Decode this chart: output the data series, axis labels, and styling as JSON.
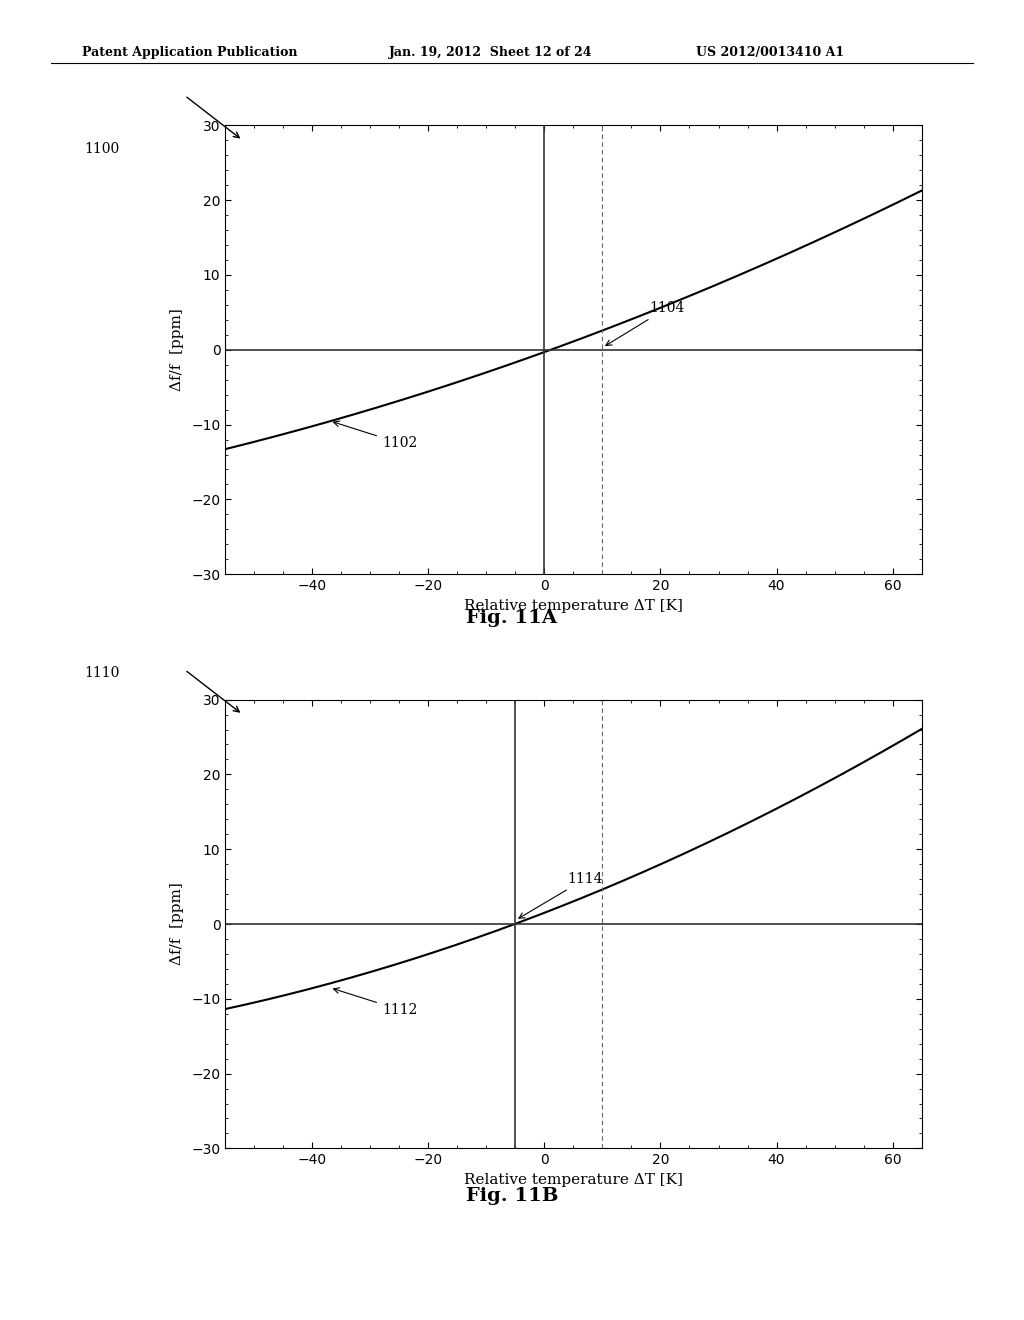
{
  "header_left": "Patent Application Publication",
  "header_mid": "Jan. 19, 2012  Sheet 12 of 24",
  "header_right": "US 2012/0013410 A1",
  "fig_a_label": "Fig. 11A",
  "fig_b_label": "Fig. 11B",
  "fig_a_ref": "1100",
  "fig_b_ref": "1110",
  "curve_a_label1": "1102",
  "curve_a_label2": "1104",
  "curve_b_label1": "1112",
  "curve_b_label2": "1114",
  "xlabel": "Relative temperature ΔT [K]",
  "ylabel": "Δf/f  [ppm]",
  "xlim": [
    -55,
    65
  ],
  "ylim": [
    -30,
    30
  ],
  "xticks": [
    -40,
    -20,
    0,
    20,
    40,
    60
  ],
  "yticks": [
    -30,
    -20,
    -10,
    0,
    10,
    20,
    30
  ],
  "vlines_a": [
    0,
    10
  ],
  "vlines_b": [
    -5,
    10
  ],
  "bg_color": "#ffffff",
  "curve_color": "#000000"
}
